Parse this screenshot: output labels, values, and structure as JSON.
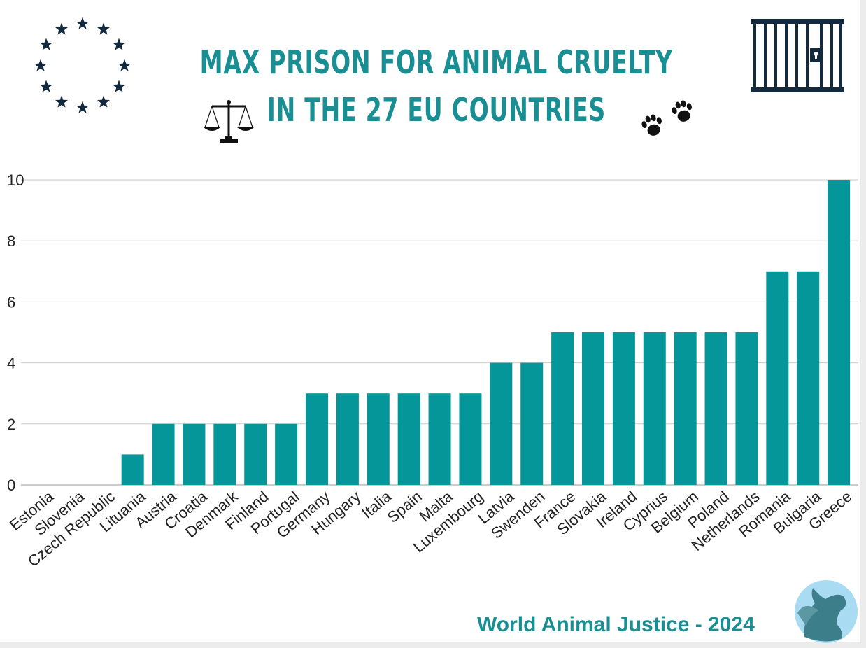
{
  "header": {
    "title_line1": "MAX PRISON FOR ANIMAL CRUELTY",
    "title_line2": "IN THE 27 EU COUNTRIES"
  },
  "icons": {
    "eu_flag": "eu-stars-icon",
    "scales": "scales-of-justice-icon",
    "paws": "paw-prints-icon",
    "prison": "prison-bars-icon",
    "logo": "pegasus-logo-icon"
  },
  "colors": {
    "bar": "#05969a",
    "title": "#1a8f93",
    "icon_dark": "#13293d",
    "grid": "#c8c8c8"
  },
  "footer": {
    "credit": "World Animal Justice - 2024"
  },
  "chart_data": {
    "type": "bar",
    "title": "MAX PRISON FOR ANIMAL CRUELTY IN THE 27 EU COUNTRIES",
    "xlabel": "",
    "ylabel": "",
    "ylim": [
      0,
      10
    ],
    "yticks": [
      0,
      2,
      4,
      6,
      8,
      10
    ],
    "grid": true,
    "categories": [
      "Estonia",
      "Slovenia",
      "Czech Republic",
      "Lituania",
      "Austria",
      "Croatia",
      "Denmark",
      "Finland",
      "Portugal",
      "Germany",
      "Hungary",
      "Italia",
      "Spain",
      "Malta",
      "Luxembourg",
      "Latvia",
      "Swenden",
      "France",
      "Slovakia",
      "Ireland",
      "Cyprius",
      "Belgium",
      "Poland",
      "Netherlands",
      "Romania",
      "Bulgaria",
      "Greece"
    ],
    "values": [
      0,
      0,
      0,
      1,
      2,
      2,
      2,
      2,
      2,
      3,
      3,
      3,
      3,
      3,
      3,
      4,
      4,
      5,
      5,
      5,
      5,
      5,
      5,
      5,
      7,
      7,
      10
    ]
  }
}
